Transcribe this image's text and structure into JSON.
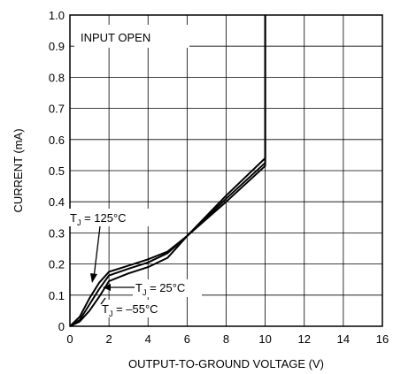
{
  "chart_data": {
    "type": "line",
    "title": "",
    "xlabel": "OUTPUT-TO-GROUND VOLTAGE (V)",
    "ylabel": "CURRENT (mA)",
    "xlim": [
      0,
      16
    ],
    "ylim": [
      0,
      1.0
    ],
    "xticks": [
      0,
      2,
      4,
      6,
      8,
      10,
      12,
      14,
      16
    ],
    "yticks": [
      0,
      0.1,
      0.2,
      0.3,
      0.4,
      0.5,
      0.6,
      0.7,
      0.8,
      0.9,
      1.0
    ],
    "grid": true,
    "annotation": "INPUT OPEN",
    "series": [
      {
        "name": "T_J = 125°C",
        "label_main": "T",
        "label_sub": "J",
        "label_rest": " = 125°C",
        "x": [
          0,
          0.5,
          1.0,
          1.5,
          2.0,
          3.0,
          4.0,
          5.0,
          6.0,
          8.0,
          10.0,
          10.0
        ],
        "y": [
          0,
          0.03,
          0.09,
          0.14,
          0.175,
          0.195,
          0.215,
          0.24,
          0.29,
          0.42,
          0.54,
          1.0
        ]
      },
      {
        "name": "T_J = 25°C",
        "label_main": "T",
        "label_sub": "J",
        "label_rest": " = 25°C",
        "x": [
          0,
          0.5,
          1.0,
          1.5,
          2.0,
          3.0,
          4.0,
          5.0,
          6.0,
          8.0,
          10.0,
          10.0
        ],
        "y": [
          0,
          0.02,
          0.07,
          0.12,
          0.163,
          0.185,
          0.205,
          0.235,
          0.29,
          0.41,
          0.525,
          1.0
        ]
      },
      {
        "name": "T_J = –55°C",
        "label_main": "T",
        "label_sub": "J",
        "label_rest": " = –55°C",
        "x": [
          0,
          0.5,
          1.0,
          1.5,
          2.0,
          3.0,
          4.0,
          5.0,
          6.0,
          8.0,
          10.0,
          10.0
        ],
        "y": [
          0,
          0.015,
          0.05,
          0.095,
          0.145,
          0.17,
          0.19,
          0.22,
          0.29,
          0.4,
          0.515,
          1.0
        ]
      }
    ]
  }
}
